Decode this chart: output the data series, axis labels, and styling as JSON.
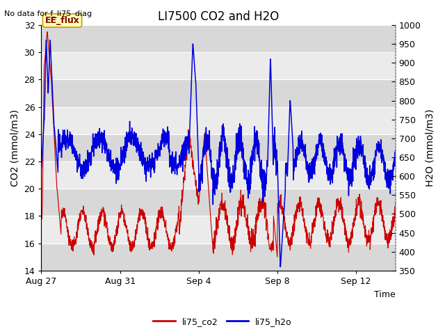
{
  "title": "LI7500 CO2 and H2O",
  "top_left_text": "No data for f_li75_diag",
  "xlabel": "Time",
  "ylabel_left": "CO2 (mmol/m3)",
  "ylabel_right": "H2O (mmol/m3)",
  "ylim_left": [
    14,
    32
  ],
  "ylim_right": [
    350,
    1000
  ],
  "yticks_left": [
    14,
    16,
    18,
    20,
    22,
    24,
    26,
    28,
    30,
    32
  ],
  "yticks_right": [
    350,
    400,
    450,
    500,
    550,
    600,
    650,
    700,
    750,
    800,
    850,
    900,
    950,
    1000
  ],
  "xtick_labels": [
    "Aug 27",
    "Aug 31",
    "Sep 4",
    "Sep 8",
    "Sep 12"
  ],
  "xtick_positions": [
    0,
    4,
    8,
    12,
    16
  ],
  "xlim": [
    0,
    18
  ],
  "legend_labels": [
    "li75_co2",
    "li75_h2o"
  ],
  "co2_color": "#cc0000",
  "h2o_color": "#0000dd",
  "background_color": "#ffffff",
  "plot_bg_dark": "#d8d8d8",
  "plot_bg_light": "#ebebeb",
  "grid_color": "#ffffff",
  "box_label": "EE_flux",
  "box_facecolor": "#ffffbb",
  "box_edgecolor": "#cc9900",
  "title_fontsize": 12,
  "label_fontsize": 10,
  "tick_fontsize": 9,
  "figsize": [
    6.4,
    4.8
  ],
  "dpi": 100
}
